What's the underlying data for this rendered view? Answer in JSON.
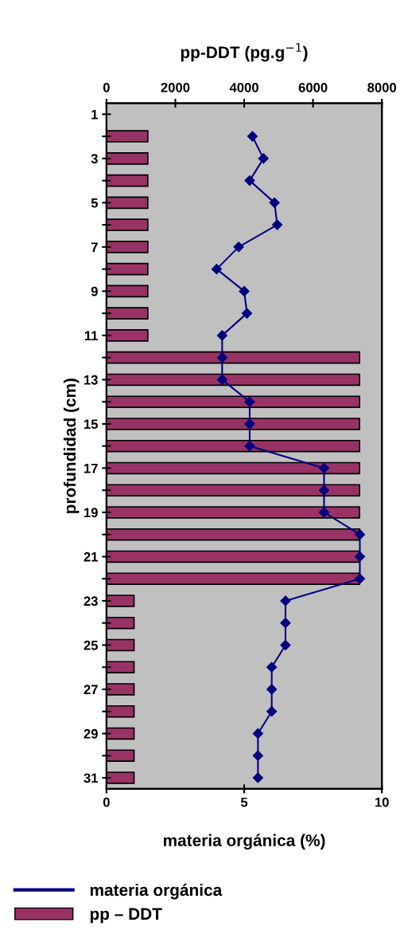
{
  "chart_data": {
    "type": "bar",
    "orientation": "horizontal",
    "categories": [
      "1",
      null,
      "3",
      null,
      "5",
      null,
      "7",
      null,
      "9",
      null,
      "11",
      null,
      "13",
      null,
      "15",
      null,
      "17",
      null,
      "19",
      null,
      "21",
      null,
      "23",
      null,
      "25",
      null,
      "27",
      null,
      "29",
      null,
      "31"
    ],
    "series": [
      {
        "name": "pp – DDT",
        "axis": "x2",
        "color": "#993366",
        "values": [
          null,
          1200,
          1200,
          1200,
          1200,
          1200,
          1200,
          1200,
          1200,
          1200,
          1200,
          7350,
          7350,
          7350,
          7350,
          7350,
          7350,
          7350,
          7350,
          7350,
          7350,
          7350,
          800,
          800,
          800,
          800,
          800,
          800,
          800,
          800,
          800
        ]
      },
      {
        "name": "materia orgánica",
        "type": "line",
        "color": "#000080",
        "marker": "diamond",
        "values": [
          null,
          5.3,
          5.7,
          5.2,
          6.1,
          6.2,
          4.8,
          4.0,
          5.0,
          5.1,
          4.2,
          4.2,
          4.2,
          5.2,
          5.2,
          5.2,
          7.9,
          7.9,
          7.9,
          9.2,
          9.2,
          9.2,
          6.5,
          6.5,
          6.5,
          6.0,
          6.0,
          6.0,
          5.5,
          5.5,
          5.5
        ]
      }
    ],
    "xlabel": "materia orgánica (%)",
    "x2label": "pp-DDT (pg.g$^{−1}$)",
    "ylabel": "profundidad (cm)",
    "xlim": [
      0,
      10
    ],
    "xticks": [
      0,
      5,
      10
    ],
    "x2lim": [
      0,
      8000
    ],
    "x2ticks": [
      0,
      2000,
      4000,
      6000,
      8000
    ],
    "grid": false,
    "legend": "bottom"
  }
}
